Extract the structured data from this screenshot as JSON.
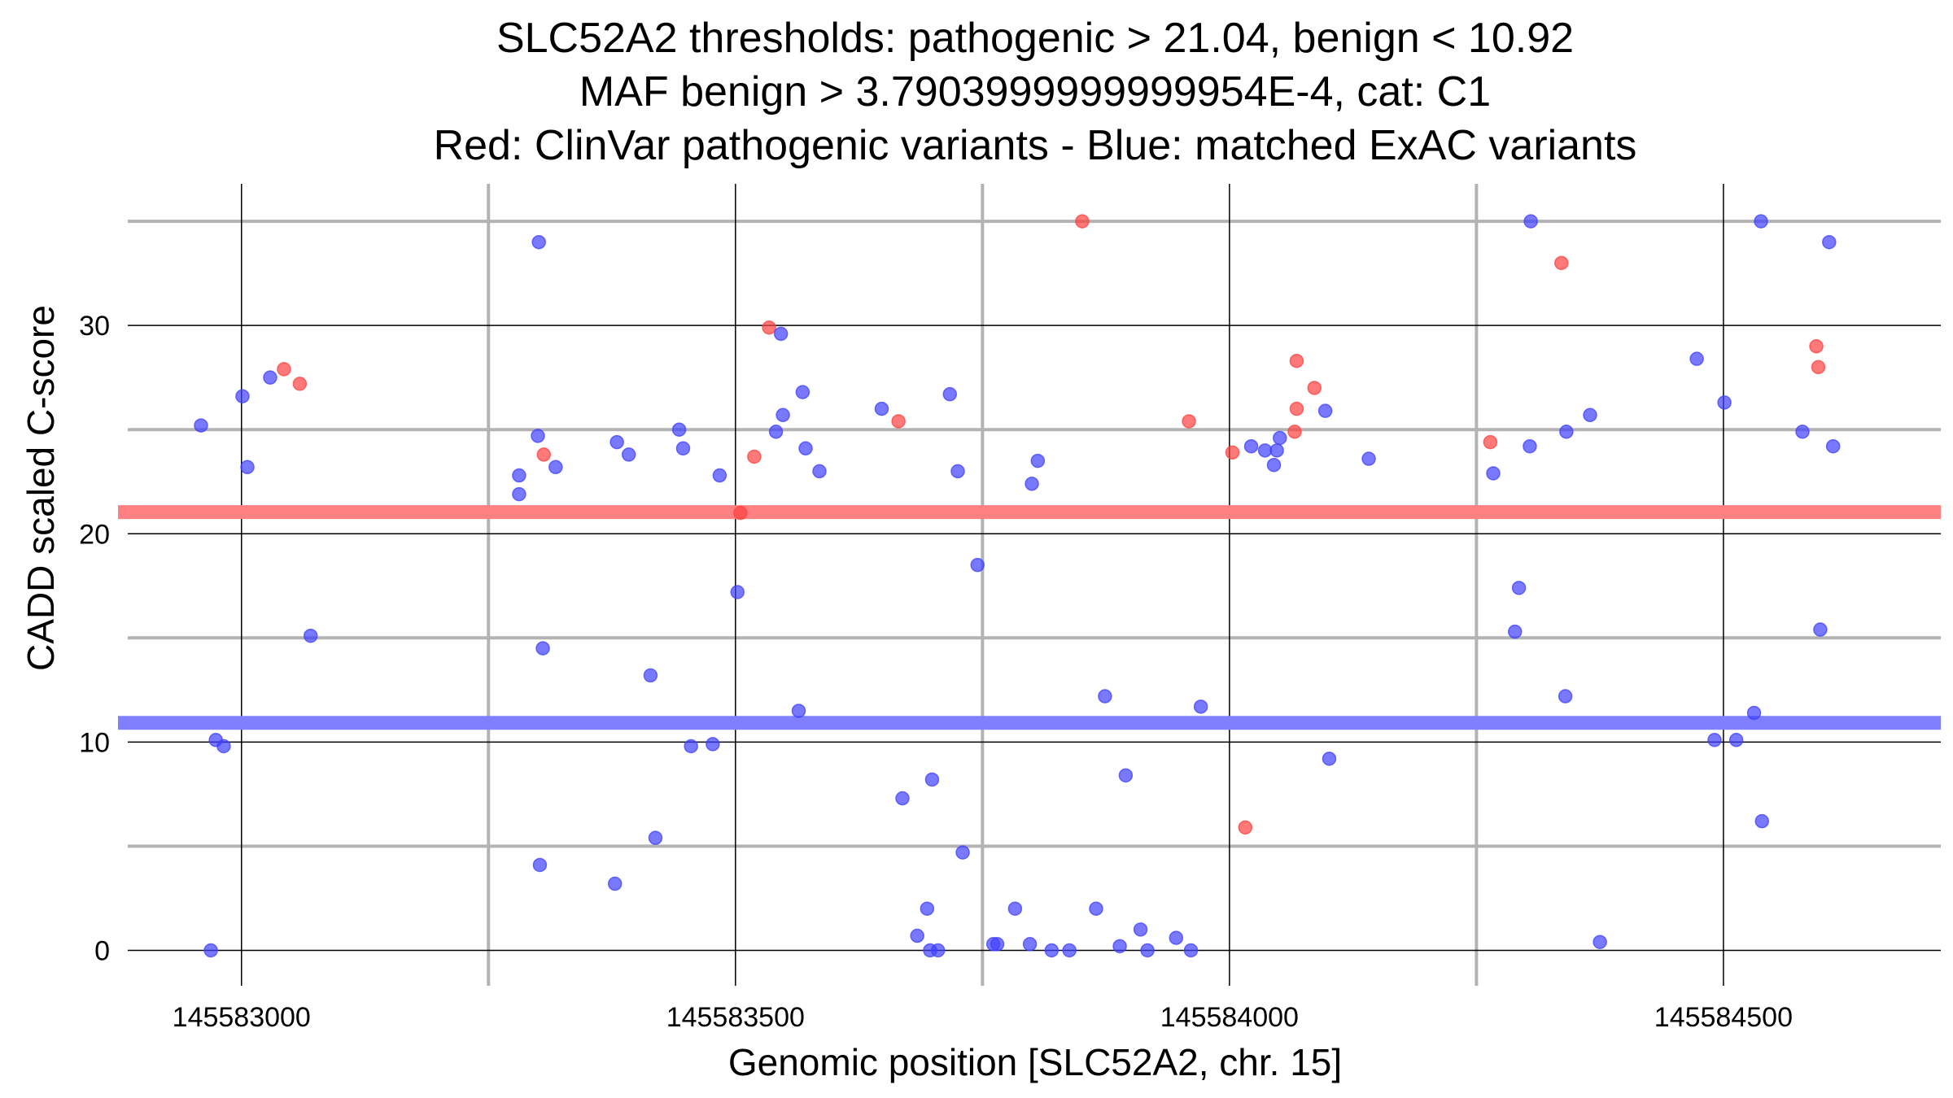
{
  "chart_data": {
    "type": "scatter",
    "title_lines": [
      "SLC52A2 thresholds: pathogenic > 21.04, benign < 10.92",
      "MAF benign > 3.7903999999999954E-4, cat: C1",
      "Red: ClinVar pathogenic variants - Blue: matched ExAC variants"
    ],
    "xlabel": "Genomic position [SLC52A2, chr. 15]",
    "ylabel": "CADD scaled C-score",
    "xlim": [
      145582875,
      145584720
    ],
    "ylim": [
      -1.7,
      36.8
    ],
    "x_major_ticks": [
      145583000,
      145583500,
      145584000,
      145584500
    ],
    "x_tick_labels": [
      "145583000",
      "145583500",
      "145584000",
      "145584500"
    ],
    "x_minor_ticks": [
      145583250,
      145583750,
      145584250
    ],
    "y_major_ticks": [
      0,
      10,
      20,
      30
    ],
    "y_tick_labels": [
      "0",
      "10",
      "20",
      "30"
    ],
    "y_minor_ticks": [
      5,
      15,
      25,
      35
    ],
    "thresholds": [
      {
        "name": "pathogenic",
        "value": 21.04,
        "color": "#ff8080"
      },
      {
        "name": "benign",
        "value": 10.92,
        "color": "#8080ff"
      }
    ],
    "series": [
      {
        "name": "ClinVar pathogenic variants",
        "color": "#ff4040",
        "points": [
          [
            145583043,
            27.9
          ],
          [
            145583059,
            27.2
          ],
          [
            145583306,
            23.8
          ],
          [
            145583505,
            21.0
          ],
          [
            145583519,
            23.7
          ],
          [
            145583534,
            29.9
          ],
          [
            145583665,
            25.4
          ],
          [
            145583851,
            35.0
          ],
          [
            145583959,
            25.4
          ],
          [
            145584003,
            23.9
          ],
          [
            145584016,
            5.9
          ],
          [
            145584066,
            24.9
          ],
          [
            145584068,
            28.3
          ],
          [
            145584068,
            26.0
          ],
          [
            145584086,
            27.0
          ],
          [
            145584264,
            24.4
          ],
          [
            145584336,
            33.0
          ],
          [
            145584594,
            29.0
          ],
          [
            145584596,
            28.0
          ]
        ]
      },
      {
        "name": "matched ExAC variants",
        "color": "#4040ff",
        "points": [
          [
            145582959,
            25.2
          ],
          [
            145582969,
            0.0
          ],
          [
            145582974,
            10.1
          ],
          [
            145582982,
            9.8
          ],
          [
            145583001,
            26.6
          ],
          [
            145583006,
            23.2
          ],
          [
            145583029,
            27.5
          ],
          [
            145583070,
            15.1
          ],
          [
            145583281,
            22.8
          ],
          [
            145583281,
            21.9
          ],
          [
            145583300,
            24.7
          ],
          [
            145583301,
            34.0
          ],
          [
            145583302,
            4.1
          ],
          [
            145583305,
            14.5
          ],
          [
            145583318,
            23.2
          ],
          [
            145583378,
            3.2
          ],
          [
            145583380,
            24.4
          ],
          [
            145583392,
            23.8
          ],
          [
            145583414,
            13.2
          ],
          [
            145583419,
            5.4
          ],
          [
            145583443,
            25.0
          ],
          [
            145583447,
            24.1
          ],
          [
            145583455,
            9.8
          ],
          [
            145583477,
            9.9
          ],
          [
            145583484,
            22.8
          ],
          [
            145583502,
            17.2
          ],
          [
            145583541,
            24.9
          ],
          [
            145583546,
            29.6
          ],
          [
            145583548,
            25.7
          ],
          [
            145583564,
            11.5
          ],
          [
            145583568,
            26.8
          ],
          [
            145583571,
            24.1
          ],
          [
            145583585,
            23.0
          ],
          [
            145583648,
            26.0
          ],
          [
            145583669,
            7.3
          ],
          [
            145583684,
            0.7
          ],
          [
            145583694,
            2.0
          ],
          [
            145583697,
            0.0
          ],
          [
            145583699,
            8.2
          ],
          [
            145583705,
            0.0
          ],
          [
            145583717,
            26.7
          ],
          [
            145583725,
            23.0
          ],
          [
            145583730,
            4.7
          ],
          [
            145583745,
            18.5
          ],
          [
            145583761,
            0.3
          ],
          [
            145583765,
            0.3
          ],
          [
            145583783,
            2.0
          ],
          [
            145583798,
            0.3
          ],
          [
            145583800,
            22.4
          ],
          [
            145583806,
            23.5
          ],
          [
            145583820,
            0.0
          ],
          [
            145583838,
            0.0
          ],
          [
            145583865,
            2.0
          ],
          [
            145583874,
            12.2
          ],
          [
            145583889,
            0.2
          ],
          [
            145583895,
            8.4
          ],
          [
            145583910,
            1.0
          ],
          [
            145583917,
            0.0
          ],
          [
            145583946,
            0.6
          ],
          [
            145583961,
            0.0
          ],
          [
            145583971,
            11.7
          ],
          [
            145584022,
            24.2
          ],
          [
            145584036,
            24.0
          ],
          [
            145584045,
            23.3
          ],
          [
            145584051,
            24.6
          ],
          [
            145584048,
            24.0
          ],
          [
            145584097,
            25.9
          ],
          [
            145584101,
            9.2
          ],
          [
            145584141,
            23.6
          ],
          [
            145584267,
            22.9
          ],
          [
            145584289,
            15.3
          ],
          [
            145584293,
            17.4
          ],
          [
            145584304,
            24.2
          ],
          [
            145584305,
            35.0
          ],
          [
            145584340,
            12.2
          ],
          [
            145584341,
            24.9
          ],
          [
            145584365,
            25.7
          ],
          [
            145584375,
            0.4
          ],
          [
            145584473,
            28.4
          ],
          [
            145584491,
            10.1
          ],
          [
            145584501,
            26.3
          ],
          [
            145584513,
            10.1
          ],
          [
            145584531,
            11.4
          ],
          [
            145584538,
            35.0
          ],
          [
            145584539,
            6.2
          ],
          [
            145584580,
            24.9
          ],
          [
            145584598,
            15.4
          ],
          [
            145584607,
            34.0
          ],
          [
            145584611,
            24.2
          ]
        ]
      }
    ]
  }
}
